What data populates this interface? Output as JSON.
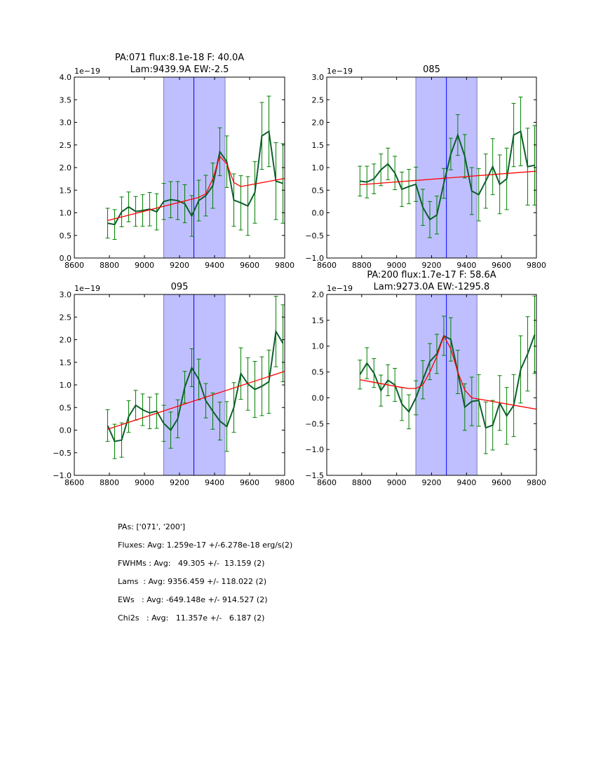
{
  "chart_data": [
    {
      "type": "line",
      "title": [
        "PA:071 flux:8.1e-18 F: 40.0A",
        "Lam:9439.9A EW:-2.5"
      ],
      "offset_label": "1e−19",
      "xlim": [
        8600,
        9800
      ],
      "ylim": [
        0,
        4
      ],
      "xticks": [
        8600,
        8800,
        9000,
        9200,
        9400,
        9600,
        9800
      ],
      "yticks": [
        0,
        0.5,
        1,
        1.5,
        2,
        2.5,
        3,
        3.5,
        4
      ],
      "shade": [
        9110,
        9460
      ],
      "vline": 9282,
      "x": [
        8790,
        8830,
        8870,
        8910,
        8950,
        8990,
        9030,
        9070,
        9110,
        9150,
        9190,
        9230,
        9270,
        9310,
        9350,
        9390,
        9430,
        9470,
        9510,
        9550,
        9590,
        9630,
        9670,
        9710,
        9750,
        9790
      ],
      "y": [
        0.77,
        0.74,
        1.02,
        1.13,
        1.03,
        1.05,
        1.08,
        1.02,
        1.25,
        1.29,
        1.27,
        1.2,
        0.93,
        1.27,
        1.38,
        1.6,
        2.35,
        2.13,
        1.28,
        1.22,
        1.15,
        1.45,
        2.7,
        2.8,
        1.7,
        1.65
      ],
      "yerr": [
        0.33,
        0.33,
        0.33,
        0.33,
        0.33,
        0.35,
        0.37,
        0.4,
        0.4,
        0.4,
        0.42,
        0.42,
        0.45,
        0.45,
        0.45,
        0.5,
        0.53,
        0.57,
        0.58,
        0.6,
        0.65,
        0.68,
        0.74,
        0.78,
        0.85,
        0.88
      ],
      "model_x": [
        8790,
        9310,
        9350,
        9390,
        9430,
        9470,
        9510,
        9550,
        9800
      ],
      "model_y": [
        0.83,
        1.34,
        1.42,
        1.75,
        2.25,
        2.08,
        1.67,
        1.58,
        1.76
      ]
    },
    {
      "type": "line",
      "title": [
        "085"
      ],
      "offset_label": "1e−19",
      "xlim": [
        8600,
        9800
      ],
      "ylim": [
        -1,
        3
      ],
      "xticks": [
        8600,
        8800,
        9000,
        9200,
        9400,
        9600,
        9800
      ],
      "yticks": [
        -1,
        -0.5,
        0,
        0.5,
        1,
        1.5,
        2,
        2.5,
        3
      ],
      "shade": [
        9110,
        9460
      ],
      "vline": 9285,
      "x": [
        8790,
        8830,
        8870,
        8910,
        8950,
        8990,
        9030,
        9070,
        9110,
        9150,
        9190,
        9230,
        9270,
        9310,
        9350,
        9390,
        9430,
        9470,
        9510,
        9550,
        9590,
        9630,
        9670,
        9710,
        9750,
        9790
      ],
      "y": [
        0.7,
        0.68,
        0.75,
        0.95,
        1.08,
        0.88,
        0.52,
        0.58,
        0.63,
        0.12,
        -0.15,
        -0.05,
        0.65,
        1.3,
        1.72,
        1.25,
        0.48,
        0.4,
        0.7,
        1.02,
        0.63,
        0.75,
        1.72,
        1.8,
        1.02,
        1.05
      ],
      "yerr": [
        0.33,
        0.35,
        0.33,
        0.35,
        0.35,
        0.37,
        0.38,
        0.38,
        0.38,
        0.4,
        0.4,
        0.42,
        0.33,
        0.35,
        0.45,
        0.48,
        0.52,
        0.58,
        0.6,
        0.62,
        0.65,
        0.68,
        0.7,
        0.76,
        0.85,
        0.88
      ],
      "model_x": [
        8790,
        9800
      ],
      "model_y": [
        0.62,
        0.92
      ]
    },
    {
      "type": "line",
      "title": [
        "095"
      ],
      "offset_label": "1e−19",
      "xlim": [
        8600,
        9800
      ],
      "ylim": [
        -1,
        3
      ],
      "xticks": [
        8600,
        8800,
        9000,
        9200,
        9400,
        9600,
        9800
      ],
      "yticks": [
        -1,
        -0.5,
        0,
        0.5,
        1,
        1.5,
        2,
        2.5,
        3
      ],
      "shade": [
        9110,
        9460
      ],
      "vline": 9282,
      "x": [
        8790,
        8830,
        8870,
        8910,
        8950,
        8990,
        9030,
        9070,
        9110,
        9150,
        9190,
        9230,
        9270,
        9310,
        9350,
        9390,
        9430,
        9470,
        9510,
        9550,
        9590,
        9630,
        9670,
        9710,
        9750,
        9790
      ],
      "y": [
        0.1,
        -0.25,
        -0.22,
        0.3,
        0.55,
        0.45,
        0.38,
        0.42,
        0.15,
        0.0,
        0.25,
        0.95,
        1.38,
        1.12,
        0.65,
        0.42,
        0.2,
        0.08,
        0.5,
        1.25,
        1.02,
        0.9,
        0.97,
        1.07,
        2.18,
        1.92
      ],
      "yerr": [
        0.35,
        0.38,
        0.38,
        0.35,
        0.33,
        0.35,
        0.35,
        0.38,
        0.4,
        0.4,
        0.42,
        0.35,
        0.42,
        0.45,
        0.38,
        0.4,
        0.42,
        0.55,
        0.55,
        0.57,
        0.58,
        0.62,
        0.65,
        0.7,
        0.78,
        0.85
      ],
      "model_x": [
        8790,
        9800
      ],
      "model_y": [
        0.02,
        1.3
      ]
    },
    {
      "type": "line",
      "title": [
        "PA:200 flux:1.7e-17 F: 58.6A",
        "Lam:9273.0A EW:-1295.8"
      ],
      "offset_label": "1e−19",
      "xlim": [
        8600,
        9800
      ],
      "ylim": [
        -1.5,
        2
      ],
      "xticks": [
        8600,
        8800,
        9000,
        9200,
        9400,
        9600,
        9800
      ],
      "yticks": [
        -1.5,
        -1,
        -0.5,
        0,
        0.5,
        1,
        1.5,
        2
      ],
      "shade": [
        9110,
        9460
      ],
      "vline": 9285,
      "x": [
        8790,
        8830,
        8870,
        8910,
        8950,
        8990,
        9030,
        9070,
        9110,
        9150,
        9190,
        9230,
        9270,
        9310,
        9350,
        9390,
        9430,
        9470,
        9510,
        9550,
        9590,
        9630,
        9670,
        9710,
        9750,
        9790
      ],
      "y": [
        0.45,
        0.67,
        0.48,
        0.14,
        0.34,
        0.25,
        -0.12,
        -0.27,
        0.0,
        0.35,
        0.7,
        0.85,
        1.2,
        1.13,
        0.5,
        -0.18,
        -0.07,
        -0.05,
        -0.58,
        -0.53,
        -0.1,
        -0.35,
        -0.15,
        0.55,
        0.85,
        1.22
      ],
      "yerr": [
        0.28,
        0.3,
        0.28,
        0.3,
        0.3,
        0.32,
        0.32,
        0.33,
        0.33,
        0.37,
        0.35,
        0.38,
        0.38,
        0.42,
        0.42,
        0.45,
        0.47,
        0.5,
        0.5,
        0.48,
        0.53,
        0.55,
        0.6,
        0.65,
        0.72,
        0.75
      ],
      "model_x": [
        8790,
        8870,
        9030,
        9070,
        9110,
        9150,
        9190,
        9230,
        9270,
        9310,
        9350,
        9390,
        9430,
        9800
      ],
      "model_y": [
        0.35,
        0.3,
        0.2,
        0.18,
        0.18,
        0.25,
        0.5,
        0.8,
        1.2,
        0.95,
        0.5,
        0.15,
        0.0,
        -0.22
      ]
    }
  ],
  "stats": [
    "PAs: ['071', '200']",
    "Fluxes: Avg: 1.259e-17 +/-6.278e-18 erg/s(2)",
    "FWHMs : Avg:   49.305 +/-  13.159 (2)",
    "Lams  : Avg: 9356.459 +/- 118.022 (2)",
    "EWs   : Avg: -649.148e +/- 914.527 (2)",
    "Chi2s   : Avg:   11.357e +/-   6.187 (2)"
  ],
  "colors": {
    "data": "#0b5f2b",
    "errorbar": "#008000",
    "model": "#ff0000",
    "shade": "#bfbfff",
    "vline": "#0000ff"
  }
}
